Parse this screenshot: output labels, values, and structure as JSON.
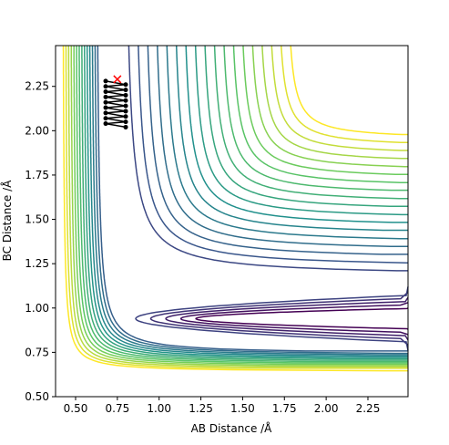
{
  "chart_data": {
    "type": "contour",
    "xlabel": "AB Distance /Å",
    "ylabel": "BC Distance /Å",
    "xlim": [
      0.38,
      2.49
    ],
    "ylim": [
      0.5,
      2.48
    ],
    "xticks": [
      {
        "value": 0.5,
        "label": "0.50"
      },
      {
        "value": 0.75,
        "label": "0.75"
      },
      {
        "value": 1.0,
        "label": "1.00"
      },
      {
        "value": 1.25,
        "label": "1.25"
      },
      {
        "value": 1.5,
        "label": "1.50"
      },
      {
        "value": 1.75,
        "label": "1.75"
      },
      {
        "value": 2.0,
        "label": "2.00"
      },
      {
        "value": 2.25,
        "label": "2.25"
      }
    ],
    "yticks": [
      {
        "value": 0.5,
        "label": "0.50"
      },
      {
        "value": 0.75,
        "label": "0.75"
      },
      {
        "value": 1.0,
        "label": "1.00"
      },
      {
        "value": 1.25,
        "label": "1.25"
      },
      {
        "value": 1.5,
        "label": "1.50"
      },
      {
        "value": 1.75,
        "label": "1.75"
      },
      {
        "value": 2.0,
        "label": "2.00"
      },
      {
        "value": 2.25,
        "label": "2.25"
      }
    ],
    "trajectory": {
      "color": "#000000",
      "x": [
        0.68,
        0.8,
        0.68,
        0.8,
        0.68,
        0.8,
        0.68,
        0.8,
        0.68,
        0.8,
        0.68,
        0.8,
        0.68,
        0.8,
        0.68,
        0.8,
        0.68,
        0.8
      ],
      "y": [
        2.28,
        2.26,
        2.25,
        2.23,
        2.22,
        2.2,
        2.19,
        2.17,
        2.16,
        2.14,
        2.13,
        2.11,
        2.1,
        2.08,
        2.07,
        2.05,
        2.04,
        2.02
      ]
    },
    "start": {
      "color": "#ff0000",
      "x": 0.75,
      "y": 2.29
    }
  }
}
